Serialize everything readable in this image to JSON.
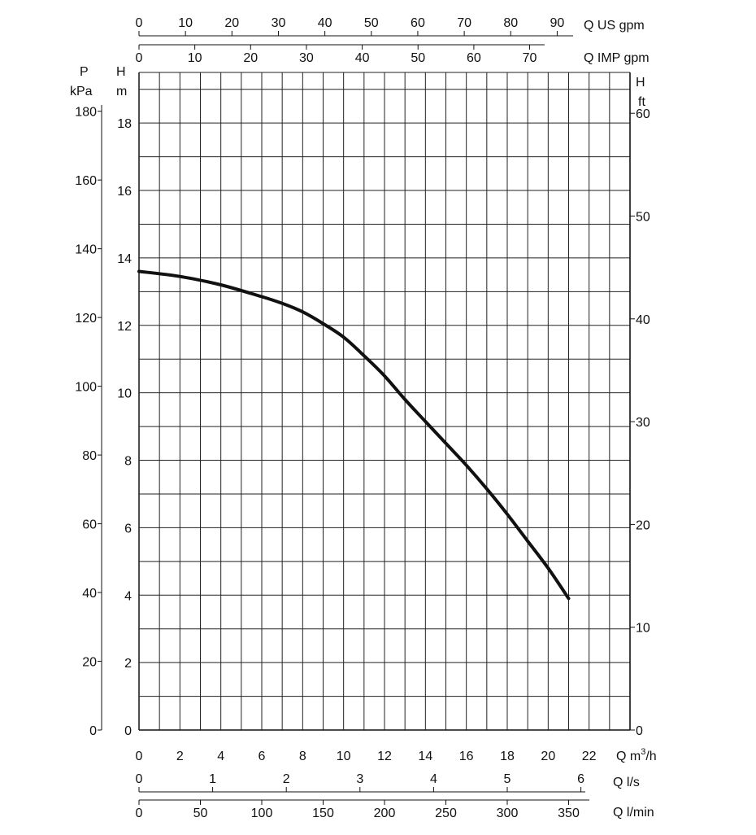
{
  "chart_data": {
    "type": "line",
    "title": "",
    "colors": {
      "curve": "#111111",
      "grid": "#222222",
      "axis": "#111111",
      "background": "#ffffff"
    },
    "grid": true,
    "xlabel_m3h": "Q m³/h",
    "xlim_m3h": [
      0,
      24
    ],
    "ylabel_m": [
      "H",
      "m"
    ],
    "ylim_m": [
      0,
      19.5
    ],
    "series": [
      {
        "x": [
          0,
          2,
          4,
          6,
          7,
          8,
          9,
          10,
          11,
          12,
          13,
          14,
          15,
          16,
          17,
          18,
          19,
          20,
          21
        ],
        "y": [
          13.6,
          13.45,
          13.2,
          12.85,
          12.65,
          12.4,
          12.05,
          11.65,
          11.1,
          10.5,
          9.8,
          9.15,
          8.5,
          7.85,
          7.15,
          6.4,
          5.6,
          4.8,
          3.9
        ]
      }
    ],
    "axes": {
      "q_us_gpm": {
        "label": "Q US gpm",
        "ticks": [
          "0",
          "10",
          "20",
          "30",
          "40",
          "50",
          "60",
          "70",
          "80",
          "90"
        ],
        "values": [
          0,
          10,
          20,
          30,
          40,
          50,
          60,
          70,
          80,
          90
        ]
      },
      "q_imp_gpm": {
        "label": "Q IMP gpm",
        "ticks": [
          "0",
          "10",
          "20",
          "30",
          "40",
          "50",
          "60",
          "70"
        ],
        "values": [
          0,
          10,
          20,
          30,
          40,
          50,
          60,
          70
        ]
      },
      "q_m3h": {
        "label": "Q m",
        "label_sup": "3",
        "label_suffix": "/h",
        "ticks": [
          "0",
          "2",
          "4",
          "6",
          "8",
          "10",
          "12",
          "14",
          "16",
          "18",
          "20",
          "22"
        ],
        "values": [
          0,
          2,
          4,
          6,
          8,
          10,
          12,
          14,
          16,
          18,
          20,
          22
        ]
      },
      "q_ls": {
        "label": "Q l/s",
        "ticks": [
          "0",
          "1",
          "2",
          "3",
          "4",
          "5",
          "6"
        ],
        "values": [
          0,
          1,
          2,
          3,
          4,
          5,
          6
        ]
      },
      "q_lmin": {
        "label": "Q l/min",
        "ticks": [
          "0",
          "50",
          "100",
          "150",
          "200",
          "250",
          "300",
          "350"
        ],
        "values": [
          0,
          50,
          100,
          150,
          200,
          250,
          300,
          350
        ]
      },
      "h_m": {
        "label_top": "H",
        "label_bottom": "m",
        "ticks": [
          "0",
          "2",
          "4",
          "6",
          "8",
          "10",
          "12",
          "14",
          "16",
          "18"
        ],
        "values": [
          0,
          2,
          4,
          6,
          8,
          10,
          12,
          14,
          16,
          18
        ]
      },
      "p_kpa": {
        "label_top": "P",
        "label_bottom": "kPa",
        "ticks": [
          "0",
          "20",
          "40",
          "60",
          "80",
          "100",
          "120",
          "140",
          "160",
          "180"
        ],
        "values": [
          0,
          20,
          40,
          60,
          80,
          100,
          120,
          140,
          160,
          180
        ]
      },
      "h_ft": {
        "label_top": "H",
        "label_bottom": "ft",
        "ticks": [
          "0",
          "10",
          "20",
          "30",
          "40",
          "50",
          "60"
        ],
        "values": [
          0,
          10,
          20,
          30,
          40,
          50,
          60
        ]
      }
    }
  }
}
